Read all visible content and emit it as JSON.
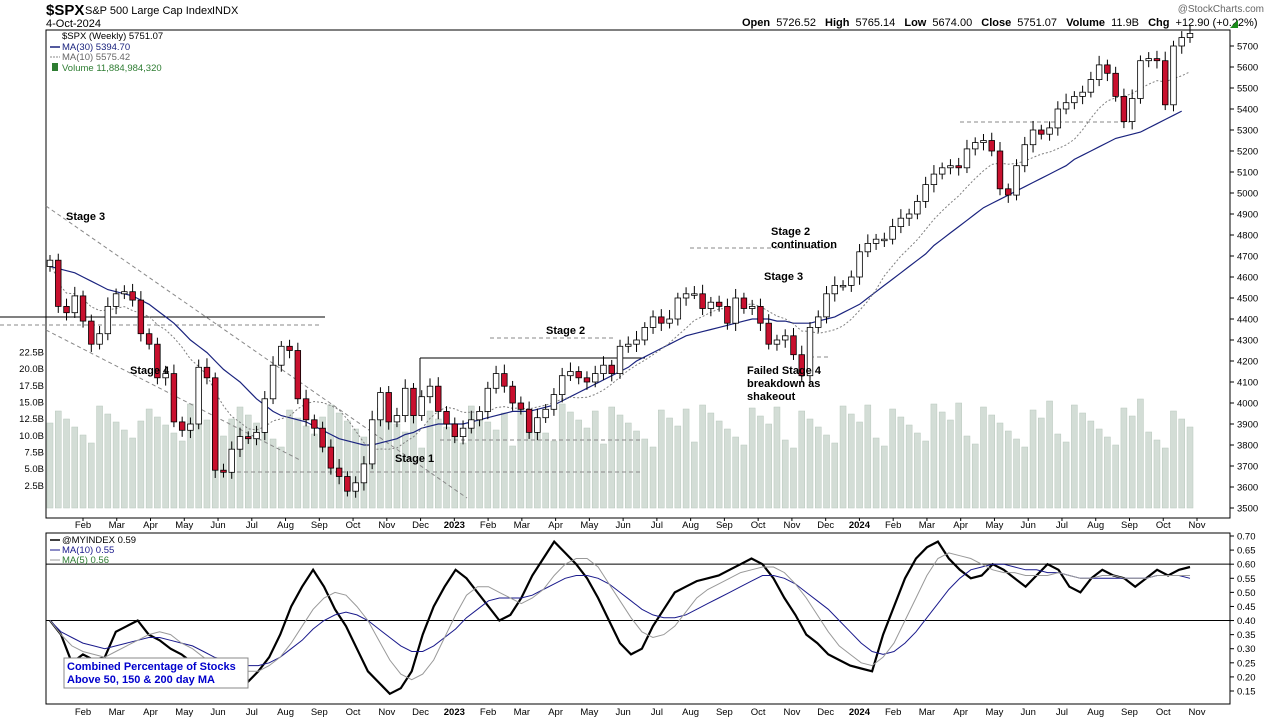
{
  "header": {
    "symbol": "$SPX",
    "name": "S&P 500 Large Cap Index",
    "exchange": "INDX",
    "date": "4-Oct-2024",
    "quote_labels": [
      "Open",
      "High",
      "Low",
      "Close",
      "Volume",
      "Chg"
    ],
    "open": "5726.52",
    "high": "5765.14",
    "low": "5674.00",
    "close": "5751.07",
    "volume": "11.9B",
    "chg": "+12.90 (+0.22%)",
    "watermark": "@StockCharts.com"
  },
  "legend": {
    "price": "$SPX (Weekly) 5751.07",
    "ma30": "MA(30) 5394.70",
    "ma10": "MA(10) 5575.42",
    "volume": "Volume 11,884,984,320"
  },
  "lower_legend": {
    "indicator": "@MYINDEX 0.59",
    "ma10": "MA(10) 0.55",
    "ma5": "MA(5) 0.56"
  },
  "annotations": [
    "Stage 3",
    "Stage 4",
    "Stage 1",
    "Stage 2",
    "Stage 2 continuation",
    "Stage 3",
    "Failed Stage 4 breakdown as shakeout"
  ],
  "indicator_caption": [
    "Combined Percentage of Stocks",
    "Above 50, 150 & 200 day MA"
  ],
  "colors": {
    "up": "#ffffff",
    "down": "#c8102e",
    "ma30": "#1a237e",
    "ma10": "#808080",
    "volume": "#d3ddd6",
    "indicator": "#000000",
    "indicator_ma10": "#1a1a8c",
    "indicator_ma5": "#999999",
    "caption_text": "#0000cc"
  },
  "chart_data": [
    {
      "type": "candlestick",
      "title": "$SPX S&P 500 Large Cap Index",
      "period": "weekly",
      "yticks": [
        3500,
        3600,
        3700,
        3800,
        3900,
        4000,
        4100,
        4200,
        4300,
        4400,
        4500,
        4600,
        4700,
        4800,
        4900,
        5000,
        5100,
        5200,
        5300,
        5400,
        5500,
        5600,
        5700
      ],
      "volume_ticks": [
        "2.5B",
        "5.0B",
        "7.5B",
        "10.0B",
        "12.5B",
        "15.0B",
        "17.5B",
        "20.0B",
        "22.5B"
      ],
      "volume_tick_values": [
        2.5,
        5,
        7.5,
        10,
        12.5,
        15,
        17.5,
        20,
        22.5
      ],
      "x_ticks": [
        "Feb",
        "Mar",
        "Apr",
        "May",
        "Jun",
        "Jul",
        "Aug",
        "Sep",
        "Oct",
        "Nov",
        "Dec",
        "2023",
        "Feb",
        "Mar",
        "Apr",
        "May",
        "Jun",
        "Jul",
        "Aug",
        "Sep",
        "Oct",
        "Nov",
        "Dec",
        "2024",
        "Feb",
        "Mar",
        "Apr",
        "May",
        "Jun",
        "Jul",
        "Aug",
        "Sep",
        "Oct",
        "Nov"
      ],
      "close": [
        4680,
        4460,
        4430,
        4510,
        4390,
        4280,
        4330,
        4460,
        4520,
        4530,
        4490,
        4330,
        4280,
        4120,
        4140,
        3910,
        3870,
        3900,
        4170,
        4120,
        3680,
        3670,
        3780,
        3840,
        3830,
        3860,
        4020,
        4180,
        4270,
        4250,
        4020,
        3920,
        3880,
        3790,
        3690,
        3650,
        3580,
        3620,
        3710,
        3920,
        4050,
        3910,
        3940,
        4070,
        3940,
        4030,
        4080,
        3960,
        3900,
        3840,
        3880,
        3920,
        3960,
        4070,
        4140,
        4080,
        4000,
        3970,
        3860,
        3930,
        3970,
        4040,
        4130,
        4150,
        4120,
        4100,
        4140,
        4180,
        4140,
        4270,
        4280,
        4300,
        4360,
        4410,
        4380,
        4400,
        4500,
        4520,
        4520,
        4450,
        4480,
        4460,
        4380,
        4500,
        4450,
        4460,
        4380,
        4280,
        4300,
        4320,
        4230,
        4130,
        4360,
        4410,
        4520,
        4560,
        4560,
        4600,
        4720,
        4760,
        4780,
        4780,
        4840,
        4880,
        4900,
        4960,
        5040,
        5090,
        5120,
        5130,
        5120,
        5210,
        5240,
        5250,
        5200,
        5020,
        4990,
        5130,
        5230,
        5300,
        5280,
        5310,
        5400,
        5430,
        5460,
        5480,
        5540,
        5610,
        5570,
        5460,
        5340,
        5450,
        5630,
        5640,
        5630,
        5420,
        5700,
        5740,
        5760
      ],
      "ma30": [
        4650,
        4640,
        4630,
        4620,
        4600,
        4580,
        4560,
        4540,
        4530,
        4520,
        4510,
        4490,
        4470,
        4440,
        4410,
        4380,
        4340,
        4300,
        4270,
        4240,
        4200,
        4160,
        4130,
        4100,
        4060,
        4020,
        3990,
        3960,
        3940,
        3930,
        3920,
        3910,
        3890,
        3870,
        3850,
        3830,
        3820,
        3810,
        3800,
        3800,
        3810,
        3820,
        3830,
        3850,
        3860,
        3880,
        3890,
        3900,
        3900,
        3900,
        3900,
        3910,
        3920,
        3930,
        3940,
        3950,
        3960,
        3960,
        3960,
        3970,
        3980,
        3990,
        4010,
        4030,
        4050,
        4070,
        4090,
        4110,
        4130,
        4150,
        4170,
        4200,
        4220,
        4240,
        4260,
        4280,
        4300,
        4320,
        4330,
        4340,
        4350,
        4360,
        4370,
        4380,
        4390,
        4400,
        4400,
        4400,
        4390,
        4390,
        4380,
        4380,
        4380,
        4390,
        4400,
        4410,
        4430,
        4450,
        4470,
        4500,
        4530,
        4560,
        4590,
        4620,
        4650,
        4680,
        4710,
        4750,
        4780,
        4810,
        4840,
        4870,
        4900,
        4930,
        4950,
        4970,
        4990,
        5010,
        5030,
        5050,
        5070,
        5090,
        5110,
        5130,
        5160,
        5180,
        5200,
        5220,
        5240,
        5260,
        5270,
        5280,
        5290,
        5310,
        5330,
        5350,
        5370,
        5390
      ]
    },
    {
      "type": "line",
      "title": "@MYINDEX",
      "yticks": [
        0.15,
        0.2,
        0.25,
        0.3,
        0.35,
        0.4,
        0.45,
        0.5,
        0.55,
        0.6,
        0.65,
        0.7
      ],
      "reference_lines": [
        0.6,
        0.4
      ],
      "series": [
        {
          "name": "@MYINDEX",
          "values": [
            0.4,
            0.35,
            0.25,
            0.28,
            0.26,
            0.27,
            0.36,
            0.38,
            0.4,
            0.35,
            0.33,
            0.3,
            0.28,
            0.25,
            0.22,
            0.2,
            0.26,
            0.24,
            0.18,
            0.22,
            0.27,
            0.35,
            0.45,
            0.52,
            0.58,
            0.52,
            0.44,
            0.38,
            0.3,
            0.22,
            0.18,
            0.14,
            0.16,
            0.22,
            0.35,
            0.45,
            0.52,
            0.58,
            0.55,
            0.5,
            0.45,
            0.4,
            0.42,
            0.48,
            0.56,
            0.62,
            0.68,
            0.64,
            0.6,
            0.55,
            0.48,
            0.4,
            0.32,
            0.28,
            0.3,
            0.38,
            0.44,
            0.5,
            0.52,
            0.54,
            0.55,
            0.56,
            0.58,
            0.6,
            0.62,
            0.6,
            0.55,
            0.48,
            0.42,
            0.35,
            0.32,
            0.28,
            0.26,
            0.24,
            0.23,
            0.22,
            0.35,
            0.45,
            0.55,
            0.62,
            0.66,
            0.68,
            0.62,
            0.58,
            0.55,
            0.56,
            0.6,
            0.58,
            0.55,
            0.52,
            0.56,
            0.6,
            0.58,
            0.52,
            0.5,
            0.55,
            0.58,
            0.56,
            0.55,
            0.52,
            0.55,
            0.58,
            0.56,
            0.58,
            0.59
          ]
        },
        {
          "name": "MA(10)",
          "values": [
            0.4,
            0.36,
            0.34,
            0.32,
            0.31,
            0.3,
            0.31,
            0.32,
            0.33,
            0.34,
            0.34,
            0.33,
            0.32,
            0.31,
            0.29,
            0.27,
            0.26,
            0.25,
            0.24,
            0.24,
            0.25,
            0.27,
            0.3,
            0.33,
            0.37,
            0.4,
            0.42,
            0.43,
            0.42,
            0.4,
            0.37,
            0.34,
            0.31,
            0.29,
            0.29,
            0.31,
            0.34,
            0.37,
            0.41,
            0.44,
            0.47,
            0.48,
            0.48,
            0.48,
            0.49,
            0.51,
            0.53,
            0.55,
            0.56,
            0.56,
            0.55,
            0.53,
            0.5,
            0.47,
            0.44,
            0.42,
            0.41,
            0.41,
            0.42,
            0.44,
            0.46,
            0.48,
            0.5,
            0.52,
            0.54,
            0.56,
            0.56,
            0.55,
            0.53,
            0.5,
            0.47,
            0.44,
            0.4,
            0.36,
            0.32,
            0.29,
            0.28,
            0.29,
            0.32,
            0.36,
            0.41,
            0.46,
            0.51,
            0.55,
            0.58,
            0.59,
            0.6,
            0.6,
            0.59,
            0.58,
            0.58,
            0.57,
            0.57,
            0.56,
            0.55,
            0.55,
            0.55,
            0.55,
            0.55,
            0.55,
            0.55,
            0.56,
            0.56,
            0.56,
            0.55
          ]
        },
        {
          "name": "MA(5)",
          "values": [
            0.4,
            0.35,
            0.31,
            0.29,
            0.28,
            0.27,
            0.29,
            0.31,
            0.33,
            0.35,
            0.36,
            0.35,
            0.32,
            0.3,
            0.27,
            0.24,
            0.23,
            0.23,
            0.22,
            0.22,
            0.24,
            0.27,
            0.32,
            0.38,
            0.44,
            0.48,
            0.5,
            0.49,
            0.45,
            0.4,
            0.33,
            0.26,
            0.21,
            0.19,
            0.21,
            0.26,
            0.34,
            0.42,
            0.49,
            0.52,
            0.52,
            0.5,
            0.48,
            0.46,
            0.48,
            0.51,
            0.56,
            0.6,
            0.62,
            0.62,
            0.59,
            0.53,
            0.47,
            0.41,
            0.36,
            0.34,
            0.35,
            0.38,
            0.43,
            0.48,
            0.51,
            0.53,
            0.55,
            0.57,
            0.58,
            0.59,
            0.59,
            0.57,
            0.53,
            0.48,
            0.42,
            0.36,
            0.31,
            0.28,
            0.25,
            0.24,
            0.27,
            0.32,
            0.4,
            0.48,
            0.56,
            0.62,
            0.64,
            0.63,
            0.62,
            0.6,
            0.58,
            0.57,
            0.57,
            0.56,
            0.56,
            0.56,
            0.57,
            0.56,
            0.55,
            0.55,
            0.56,
            0.56,
            0.55,
            0.55,
            0.55,
            0.56,
            0.56,
            0.56,
            0.56
          ]
        }
      ]
    }
  ]
}
